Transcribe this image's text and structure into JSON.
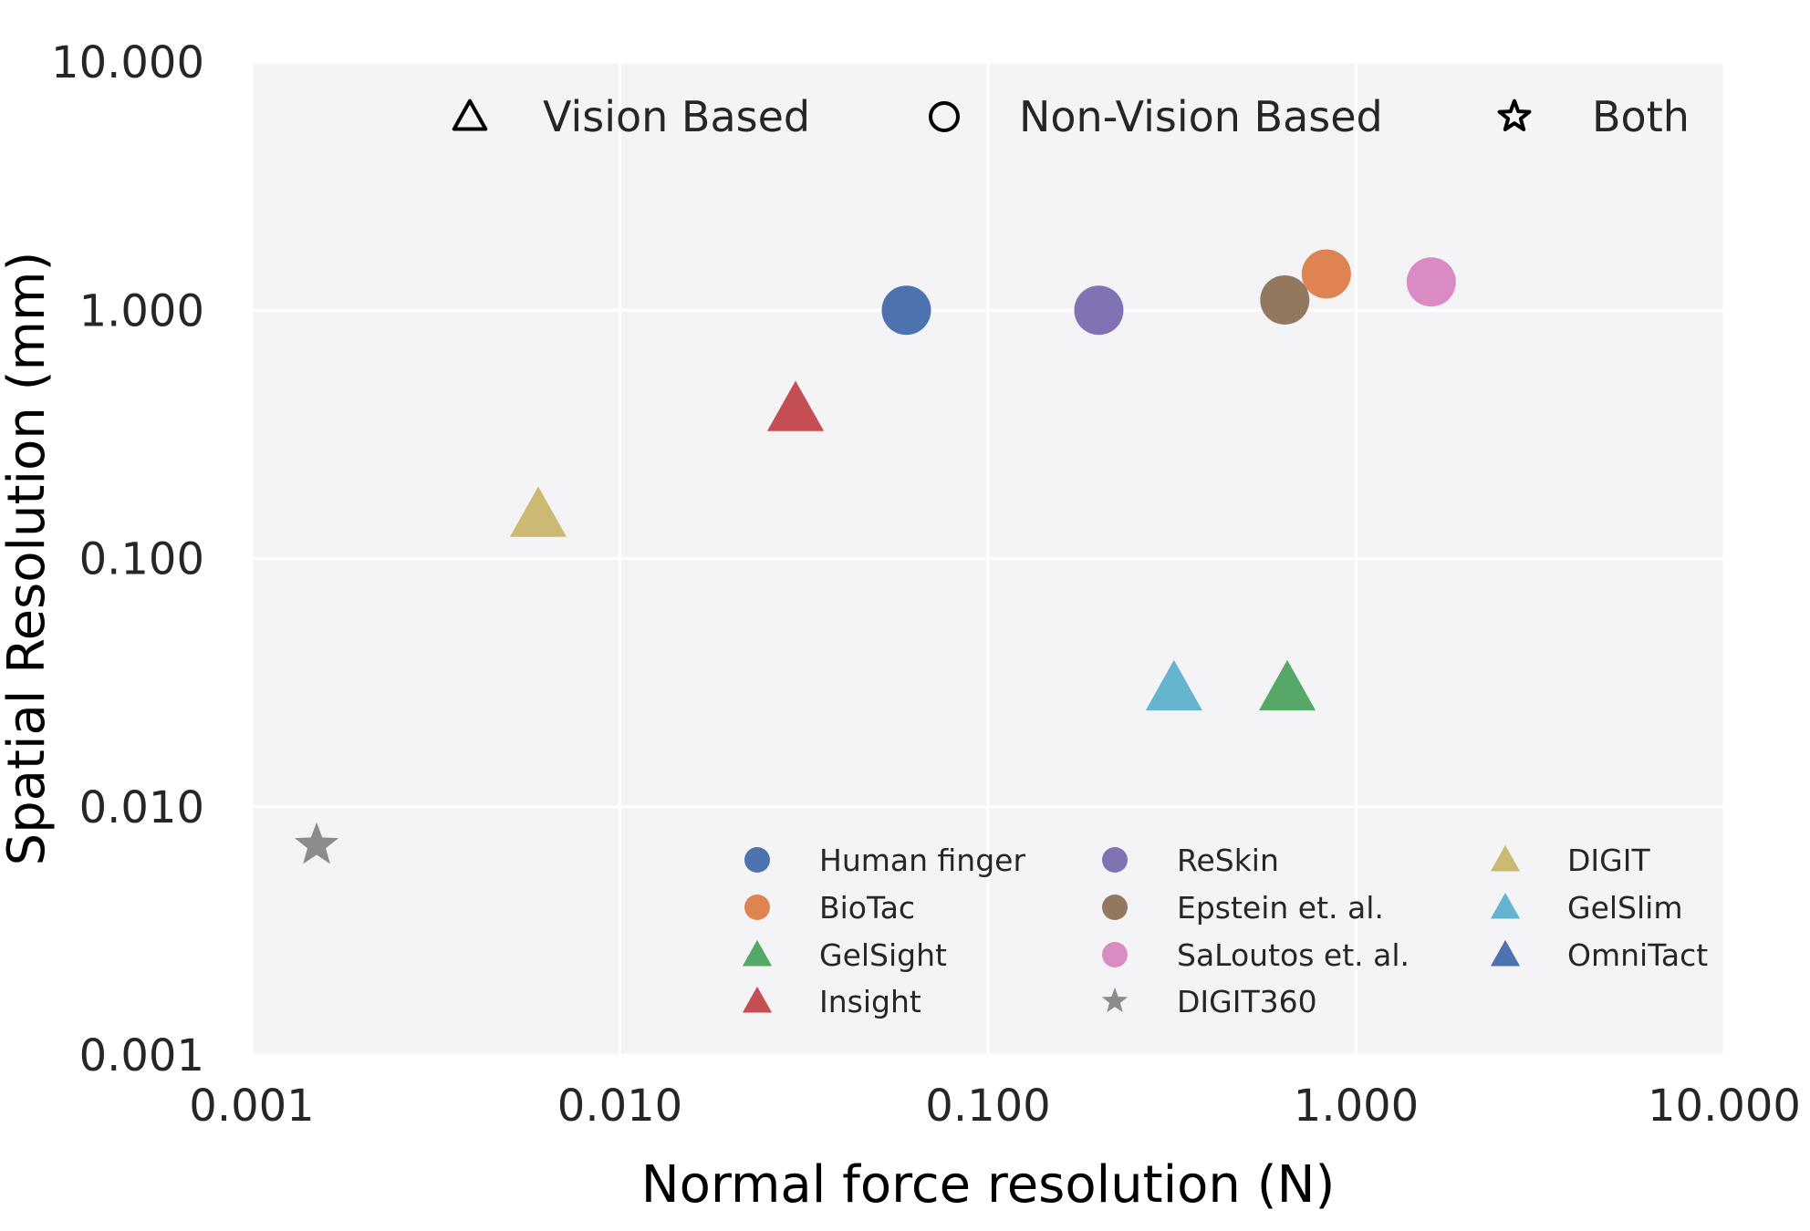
{
  "chart_data": {
    "type": "scatter",
    "title": "",
    "xlabel": "Normal force resolution (N)",
    "ylabel": "Spatial Resolution (mm)",
    "xscale": "log",
    "yscale": "log",
    "xlim": [
      0.001,
      10
    ],
    "ylim": [
      0.001,
      10
    ],
    "x_ticks": [
      0.001,
      0.01,
      0.1,
      1,
      10
    ],
    "y_ticks": [
      0.001,
      0.01,
      0.1,
      1,
      10
    ],
    "x_tick_labels": [
      "0.001",
      "0.010",
      "0.100",
      "1.000",
      "10.000"
    ],
    "y_tick_labels": [
      "0.001",
      "0.010",
      "0.100",
      "1.000",
      "10.000"
    ],
    "grid": true,
    "marker_legend": [
      {
        "shape": "triangle",
        "label": "Vision Based"
      },
      {
        "shape": "circle",
        "label": "Non-Vision Based"
      },
      {
        "shape": "star",
        "label": "Both"
      }
    ],
    "legend_position": "lower-right",
    "series": [
      {
        "name": "Human finger",
        "shape": "circle",
        "color": "#4c72b0",
        "x": 0.06,
        "y": 1.0
      },
      {
        "name": "BioTac",
        "shape": "circle",
        "color": "#dd8452",
        "x": 0.83,
        "y": 1.4
      },
      {
        "name": "GelSight",
        "shape": "triangle",
        "color": "#55a868",
        "x": 0.65,
        "y": 0.03
      },
      {
        "name": "Insight",
        "shape": "triangle",
        "color": "#c44e52",
        "x": 0.03,
        "y": 0.4
      },
      {
        "name": "ReSkin",
        "shape": "circle",
        "color": "#8172b3",
        "x": 0.2,
        "y": 1.0
      },
      {
        "name": "Epstein et. al.",
        "shape": "circle",
        "color": "#937860",
        "x": 0.64,
        "y": 1.1
      },
      {
        "name": "SaLoutos et. al.",
        "shape": "circle",
        "color": "#da8bc3",
        "x": 1.6,
        "y": 1.3
      },
      {
        "name": "DIGIT360",
        "shape": "star",
        "color": "#8c8c8c",
        "x": 0.0015,
        "y": 0.007
      },
      {
        "name": "DIGIT",
        "shape": "triangle",
        "color": "#ccb974",
        "x": 0.006,
        "y": 0.15
      },
      {
        "name": "GelSlim",
        "shape": "triangle",
        "color": "#64b5cd",
        "x": 0.32,
        "y": 0.03
      },
      {
        "name": "OmniTact",
        "shape": "triangle",
        "color": "#4c72b0",
        "x": null,
        "y": null
      }
    ]
  }
}
